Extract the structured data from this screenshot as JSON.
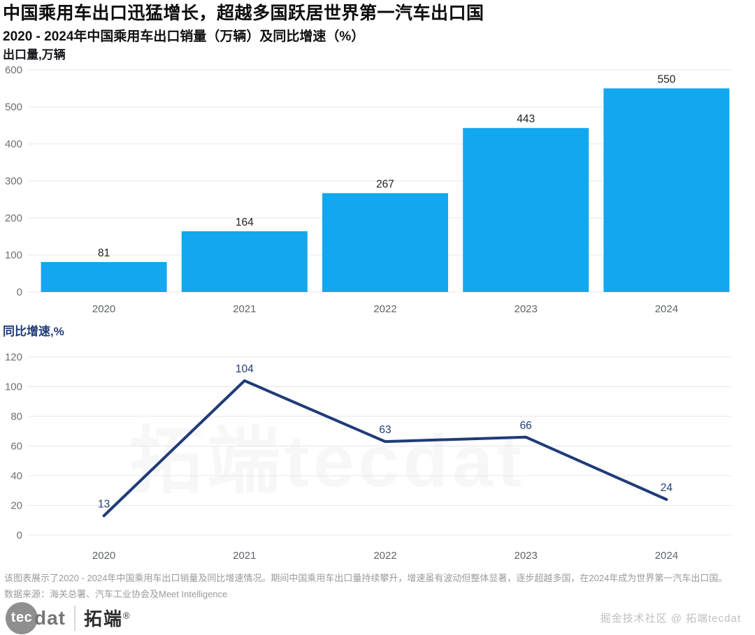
{
  "header": {
    "title": "中国乘用车出口迅猛增长，超越多国跃居世界第一汽车出口国",
    "subtitle": "2020 - 2024年中国乘用车出口销量（万辆）及同比增速（%）"
  },
  "colors": {
    "bar": "#12a7ee",
    "line": "#1f3c78",
    "grid": "#e7e7e7",
    "tick_label": "#6f6f6f",
    "x_label": "#5f6368",
    "bar_value_label": "#222222",
    "line_value_label": "#1f3c78"
  },
  "chart_data": [
    {
      "type": "bar",
      "title": "出口量,万辆",
      "ylabel_strong": "出口量",
      "ylabel_rest": ",万辆",
      "label_color": "#16181d",
      "categories": [
        "2020",
        "2021",
        "2022",
        "2023",
        "2024"
      ],
      "values": [
        81,
        164,
        267,
        443,
        550
      ],
      "ylim": [
        0,
        600
      ],
      "ytick_step": 100,
      "grid": true,
      "legend": "none",
      "bar_color": "#12a7ee"
    },
    {
      "type": "line",
      "title": "同比增速,%",
      "ylabel_strong": "同比增速",
      "ylabel_rest": ",%",
      "label_color": "#1f3c78",
      "categories": [
        "2020",
        "2021",
        "2022",
        "2023",
        "2024"
      ],
      "values": [
        13,
        104,
        63,
        66,
        24
      ],
      "ylim": [
        0,
        120
      ],
      "ytick_step": 20,
      "grid": true,
      "legend": "none",
      "line_color": "#1f3c78"
    }
  ],
  "watermark": "拓端tecdat",
  "notes": {
    "line1": "该图表展示了2020 - 2024年中国乘用车出口销量及同比增速情况。期间中国乘用车出口量持续攀升，增速虽有波动但整体显著，逐步超越多国，在2024年成为世界第一汽车出口国。",
    "line2": "数据来源：海关总署、汽车工业协会及Meet Intelligence"
  },
  "footer": {
    "logo_circle": "tec",
    "logo_rest": "dat",
    "logo_cn": "拓端",
    "logo_reg": "®",
    "right_text": "掘金技术社区 @ 拓端tecdat"
  }
}
